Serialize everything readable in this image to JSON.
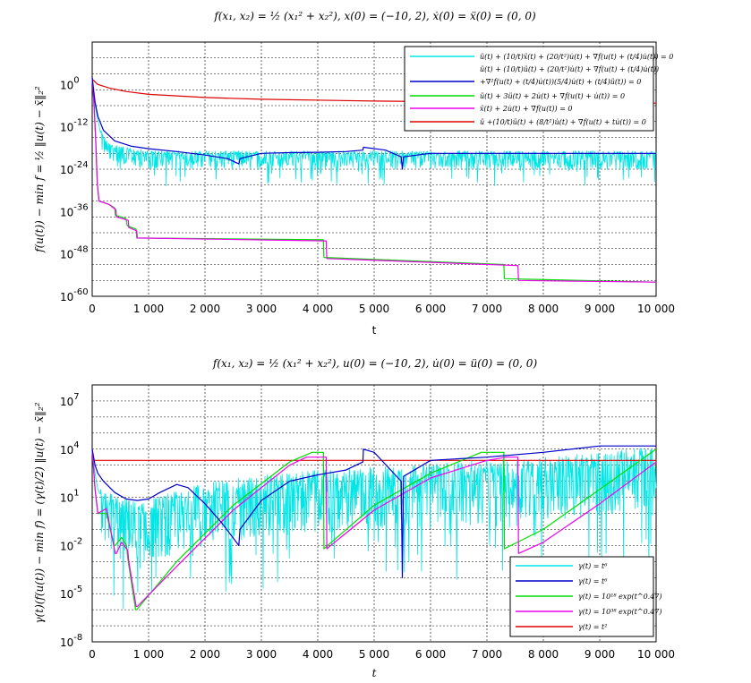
{
  "chart_data": [
    {
      "type": "line",
      "title": "f(x₁, x₂) = ½ (x₁² + x₂²), x(0) = (−10, 2), ẋ(0) = ẍ(0) = (0, 0)",
      "xlabel": "t",
      "ylabel": "f(u(t)) − min f = ½ ‖u(t) − x̄‖₂²",
      "xlim": [
        0,
        10000
      ],
      "ylim_log10": [
        -60,
        12
      ],
      "yscale": "log",
      "grid": true,
      "legend_position": "top-right",
      "x_ticks": [
        0,
        1000,
        2000,
        3000,
        4000,
        5000,
        6000,
        7000,
        8000,
        9000,
        10000
      ],
      "x_tick_labels": [
        "0",
        "1 000",
        "2 000",
        "3 000",
        "4 000",
        "5 000",
        "6 000",
        "7 000",
        "8 000",
        "9 000",
        "10 000"
      ],
      "y_ticks_log10": [
        0,
        -12,
        -24,
        -36,
        -48,
        -60
      ],
      "y_tick_bases": [
        "10",
        "10",
        "10",
        "10",
        "10",
        "10"
      ],
      "y_tick_exponents": [
        "0",
        "-12",
        "-24",
        "-36",
        "-48",
        "-60"
      ],
      "series": [
        {
          "name": "ü(t) + (10/t)ẍ(t) + (20/t²)u̇(t) + ∇f(u(t) + (t/4)u̇(t)) = 0",
          "legend2": "",
          "color": "#00e5e5",
          "noisy": true,
          "noise_amp": 4,
          "noise_after": 150,
          "x": [
            0,
            50,
            100,
            150,
            250,
            400,
            600,
            800,
            1000,
            1500,
            2000,
            3000,
            4000,
            5000,
            6000,
            7000,
            8000,
            9000,
            10000
          ],
          "log10y": [
            2,
            -6,
            -10,
            -14,
            -17,
            -18,
            -19,
            -19.5,
            -20,
            -20,
            -20,
            -20,
            -20,
            -20,
            -20,
            -20,
            -20,
            -20,
            -20
          ]
        },
        {
          "name": "ü(t) + (10/t)ü(t) + (20/t²)u̇(t) + ∇f(u(t) + (t/4)u̇(t))",
          "legend2": "+∇²f(u(t) + (t/4)u̇(t))(5/4)u̇(t) + (t/4)ü(t)) = 0",
          "color": "#0000cc",
          "noisy": false,
          "x": [
            0,
            50,
            100,
            200,
            400,
            700,
            1000,
            1500,
            2000,
            2400,
            2600,
            2620,
            3000,
            3500,
            4000,
            4500,
            4800,
            4810,
            5200,
            5480,
            5500,
            5520,
            6000,
            7000,
            8000,
            9000,
            10000
          ],
          "log10y": [
            2,
            -5,
            -9,
            -13,
            -16,
            -17.5,
            -18.2,
            -19,
            -20,
            -21,
            -22.5,
            -21,
            -19.5,
            -19.3,
            -19.2,
            -19,
            -18.6,
            -17.8,
            -18.6,
            -20.5,
            -24,
            -20.5,
            -19.5,
            -19.5,
            -19.5,
            -19.5,
            -19.5
          ]
        },
        {
          "name": "ü(t) + 3ü(t) + 2u̇(t) + ∇f(u(t) + u̇(t)) = 0",
          "legend2": "",
          "color": "#00dd00",
          "noisy": false,
          "x": [
            0,
            30,
            60,
            90,
            120,
            300,
            400,
            410,
            600,
            620,
            780,
            790,
            4100,
            4110,
            7300,
            7310,
            10000
          ],
          "log10y": [
            2,
            -5,
            -15,
            -28,
            -33,
            -34,
            -35,
            -37,
            -38,
            -40,
            -41,
            -43.5,
            -44,
            -49,
            -51,
            -55,
            -56
          ]
        },
        {
          "name": "ẍ(t) + 2u̇(t) + ∇f(u(t)) = 0",
          "legend2": "",
          "color": "#ee00ee",
          "noisy": false,
          "x": [
            0,
            30,
            60,
            90,
            120,
            300,
            420,
            430,
            640,
            650,
            790,
            800,
            4150,
            4160,
            7550,
            7560,
            10000
          ],
          "log10y": [
            2,
            -5,
            -15,
            -28,
            -33,
            -34,
            -35.5,
            -37.5,
            -38.5,
            -40.5,
            -41.5,
            -43.5,
            -44.3,
            -49.3,
            -51.3,
            -55.5,
            -56
          ]
        },
        {
          "name": "ü +(10/t)ü(t) + (8/t²)u̇(t) + ∇f(u(t) + tu̇(t)) = 0",
          "legend2": "",
          "color": "#dd0000",
          "noisy": false,
          "x": [
            0,
            100,
            300,
            600,
            1000,
            2000,
            3000,
            5000,
            7000,
            10000
          ],
          "log10y": [
            1.5,
            0,
            -1,
            -2,
            -2.8,
            -3.7,
            -4.2,
            -4.7,
            -5,
            -5.3
          ]
        }
      ]
    },
    {
      "type": "line",
      "title": "f(x₁, x₂) = ½ (x₁² + x₂²), u(0) = (−10, 2), u̇(0) = ü(0) = (0, 0)",
      "xlabel": "t",
      "ylabel": "γ(t)(f(u(t)) − min f) = (γ(t)/2) ‖u(t) − x̄‖₂²",
      "xlim": [
        0,
        10000
      ],
      "ylim_log10": [
        -8,
        8
      ],
      "yscale": "log",
      "grid": true,
      "legend_position": "bottom-right",
      "x_ticks": [
        0,
        1000,
        2000,
        3000,
        4000,
        5000,
        6000,
        7000,
        8000,
        9000,
        10000
      ],
      "x_tick_labels": [
        "0",
        "1 000",
        "2 000",
        "3 000",
        "4 000",
        "5 000",
        "6 000",
        "7 000",
        "8 000",
        "9 000",
        "10 000"
      ],
      "y_ticks_log10": [
        7,
        4,
        1,
        -2,
        -5,
        -8
      ],
      "y_tick_bases": [
        "10",
        "10",
        "10",
        "10",
        "10",
        "10"
      ],
      "y_tick_exponents": [
        "7",
        "4",
        "1",
        "-2",
        "-5",
        "-8"
      ],
      "series": [
        {
          "name": "γ(t) = t⁶",
          "legend2": "",
          "color": "#00e5e5",
          "noisy": true,
          "noise_amp": 3,
          "noise_after": 150,
          "x": [
            0,
            50,
            100,
            200,
            400,
            600,
            800,
            1000,
            1500,
            2000,
            3000,
            4000,
            5000,
            6000,
            7000,
            8000,
            9000,
            10000
          ],
          "log10y": [
            4,
            2.5,
            1.5,
            0.8,
            0.2,
            0,
            -0.2,
            0,
            0.5,
            1,
            1.5,
            1.8,
            2,
            2.2,
            2.4,
            2.6,
            2.9,
            3.3
          ]
        },
        {
          "name": "γ(t) = t⁶",
          "legend2": "",
          "color": "#0000cc",
          "noisy": false,
          "x": [
            0,
            50,
            100,
            200,
            400,
            600,
            800,
            1000,
            1200,
            1500,
            1700,
            2000,
            2300,
            2600,
            2620,
            3000,
            3500,
            4000,
            4500,
            4800,
            4810,
            5000,
            5480,
            5500,
            5520,
            6000,
            7000,
            8000,
            9000,
            10000
          ],
          "log10y": [
            4,
            3,
            2.5,
            2,
            1.3,
            0.9,
            0.8,
            0.9,
            1.3,
            1.8,
            1.6,
            0.6,
            -0.6,
            -2,
            -1,
            0.8,
            2,
            2.4,
            2.7,
            3.2,
            4,
            3.8,
            2,
            -4,
            2.3,
            3.3,
            3.5,
            3.8,
            4.2,
            4.2
          ]
        },
        {
          "name": "γ(t) = 10¹⁸ exp(t^0.47)",
          "legend2": "",
          "color": "#00dd00",
          "noisy": false,
          "x": [
            0,
            50,
            100,
            250,
            390,
            410,
            520,
            610,
            630,
            770,
            790,
            1500,
            2500,
            3500,
            3900,
            4100,
            4110,
            5000,
            6000,
            6900,
            7100,
            7300,
            7310,
            8000,
            9000,
            10000
          ],
          "log10y": [
            4,
            1.5,
            0,
            0,
            -2,
            -2,
            -1.5,
            -2,
            -2.8,
            -6,
            -6,
            -3,
            0.5,
            3.2,
            3.8,
            3.8,
            -2.2,
            0.5,
            2.5,
            3.8,
            3.8,
            3.8,
            -2.2,
            -1,
            1.5,
            4
          ]
        },
        {
          "name": "γ(t) = 10³⁸ exp(t^0.47)",
          "legend2": "",
          "color": "#ee00ee",
          "noisy": false,
          "x": [
            0,
            50,
            100,
            250,
            410,
            430,
            520,
            630,
            650,
            780,
            800,
            1500,
            2500,
            3500,
            3800,
            4150,
            4160,
            5000,
            6000,
            7000,
            7350,
            7550,
            7560,
            8000,
            9000,
            10000
          ],
          "log10y": [
            4,
            1.5,
            0,
            0.3,
            -2.5,
            -2.5,
            -1.8,
            -2.3,
            -3,
            -5.8,
            -5.8,
            -3.3,
            0.2,
            3,
            3.5,
            3.5,
            -2.2,
            0.2,
            2.2,
            3.3,
            3.5,
            3.5,
            -2.5,
            -1.8,
            0.6,
            3.2
          ]
        },
        {
          "name": "γ(t) = t²",
          "legend2": "",
          "color": "#dd0000",
          "noisy": false,
          "x": [
            0,
            10000
          ],
          "log10y": [
            3.3,
            3.3
          ]
        }
      ]
    }
  ]
}
